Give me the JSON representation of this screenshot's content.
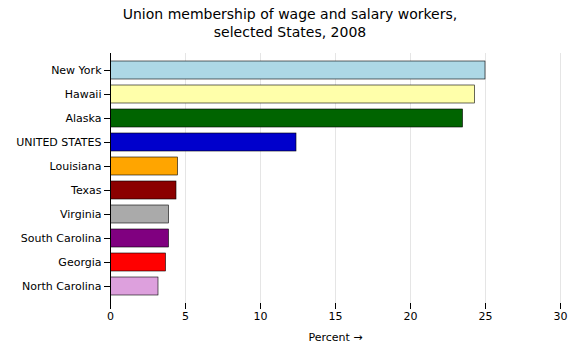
{
  "chart_data": {
    "type": "bar",
    "orientation": "horizontal",
    "title": "Union membership of wage and salary workers,\nselected States, 2008",
    "categories": [
      "New York",
      "Hawaii",
      "Alaska",
      "UNITED STATES",
      "Louisiana",
      "Texas",
      "Virginia",
      "South Carolina",
      "Georgia",
      "North Carolina"
    ],
    "values": [
      25.0,
      24.3,
      23.5,
      12.4,
      4.5,
      4.4,
      3.9,
      3.9,
      3.7,
      3.2
    ],
    "colors": [
      "#ADD8E6",
      "#FFFFAA",
      "#006400",
      "#0000CC",
      "#FFA500",
      "#8B0000",
      "#AAAAAA",
      "#800080",
      "#FF0000",
      "#DDA0DD"
    ],
    "xlabel": "Percent",
    "xlim": [
      0,
      30
    ],
    "xticks": [
      0,
      5,
      10,
      15,
      20,
      25,
      30
    ],
    "grid": true
  }
}
